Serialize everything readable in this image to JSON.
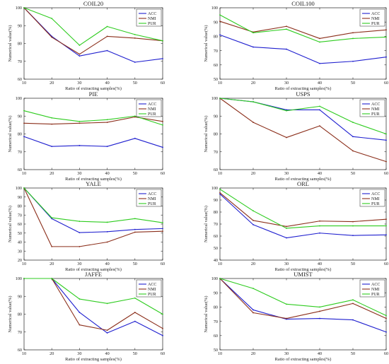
{
  "colors": {
    "ACC": "#1f1fcf",
    "NMI": "#8b2e1a",
    "PUR": "#2ecc1f"
  },
  "chart_data": [
    {
      "type": "line",
      "title": "COIL20",
      "xlabel": "Ratio of extracting samples(%)",
      "ylabel": "Numerical value(%)",
      "x": [
        10,
        20,
        30,
        40,
        50,
        60
      ],
      "xlim": [
        10,
        60
      ],
      "ylim": [
        60,
        100
      ],
      "yticks": [
        60,
        70,
        80,
        90,
        100
      ],
      "legend": "top-right",
      "grid": false,
      "series": [
        {
          "name": "ACC",
          "values": [
            100,
            84,
            73,
            76,
            69.5,
            71.5
          ]
        },
        {
          "name": "NMI",
          "values": [
            100,
            83.5,
            74,
            84,
            83,
            81.5
          ]
        },
        {
          "name": "PUR",
          "values": [
            100,
            94,
            79,
            89.5,
            85,
            81.5
          ]
        }
      ]
    },
    {
      "type": "line",
      "title": "COIL100",
      "xlabel": "Ratio of extracting samples(%)",
      "ylabel": "Numerical value(%)",
      "x": [
        10,
        20,
        30,
        40,
        50,
        60
      ],
      "xlim": [
        10,
        60
      ],
      "ylim": [
        50,
        100
      ],
      "yticks": [
        50,
        60,
        70,
        80,
        90,
        100
      ],
      "legend": "top-right",
      "grid": false,
      "series": [
        {
          "name": "ACC",
          "values": [
            81,
            72.5,
            71,
            61,
            62.5,
            65.5
          ]
        },
        {
          "name": "NMI",
          "values": [
            90.5,
            83,
            87,
            78.5,
            82.5,
            84.5
          ]
        },
        {
          "name": "PUR",
          "values": [
            95,
            82.5,
            85,
            76,
            78.5,
            79.5
          ]
        }
      ]
    },
    {
      "type": "line",
      "title": "PIE",
      "xlabel": "Ratio of extracting samples(%)",
      "ylabel": "Numerical value(%)",
      "x": [
        10,
        20,
        30,
        40,
        50,
        60
      ],
      "xlim": [
        10,
        60
      ],
      "ylim": [
        60,
        100
      ],
      "yticks": [
        60,
        70,
        80,
        90,
        100
      ],
      "legend": "top-right",
      "grid": false,
      "series": [
        {
          "name": "ACC",
          "values": [
            78.5,
            73,
            73.5,
            73,
            77.5,
            72.5
          ]
        },
        {
          "name": "NMI",
          "values": [
            86,
            85.5,
            86,
            86.5,
            89.5,
            87
          ]
        },
        {
          "name": "PUR",
          "values": [
            93,
            89,
            87,
            88,
            90,
            85
          ]
        }
      ]
    },
    {
      "type": "line",
      "title": "USPS",
      "xlabel": "Ratio of extracting samples(%)",
      "ylabel": "Numerical value(%)",
      "x": [
        10,
        20,
        30,
        40,
        50,
        60
      ],
      "xlim": [
        10,
        60
      ],
      "ylim": [
        60,
        100
      ],
      "yticks": [
        60,
        70,
        80,
        90,
        100
      ],
      "legend": "top-right",
      "grid": false,
      "series": [
        {
          "name": "ACC",
          "values": [
            100,
            98,
            93.5,
            93.5,
            78.5,
            76.5
          ]
        },
        {
          "name": "NMI",
          "values": [
            100,
            86.5,
            78,
            84.5,
            70.5,
            64.5
          ]
        },
        {
          "name": "PUR",
          "values": [
            100,
            98,
            93,
            95.5,
            86.5,
            80
          ]
        }
      ]
    },
    {
      "type": "line",
      "title": "YALE",
      "xlabel": "Ratio of extracting samples(%)",
      "ylabel": "Numerical value(%)",
      "x": [
        10,
        20,
        30,
        40,
        50,
        60
      ],
      "xlim": [
        10,
        60
      ],
      "ylim": [
        20,
        100
      ],
      "yticks": [
        20,
        30,
        40,
        50,
        60,
        70,
        80,
        90,
        100
      ],
      "legend": "top-right",
      "grid": false,
      "series": [
        {
          "name": "ACC",
          "values": [
            100,
            66,
            50.5,
            51.5,
            54,
            55
          ]
        },
        {
          "name": "NMI",
          "values": [
            100,
            35,
            35,
            40,
            51,
            52
          ]
        },
        {
          "name": "PUR",
          "values": [
            100,
            67,
            63,
            62,
            66,
            61.5
          ]
        }
      ]
    },
    {
      "type": "line",
      "title": "ORL",
      "xlabel": "Ratio of extracting samples(%)",
      "ylabel": "Numerical value(%)",
      "x": [
        10,
        20,
        30,
        40,
        50,
        60
      ],
      "xlim": [
        10,
        60
      ],
      "ylim": [
        40,
        100
      ],
      "yticks": [
        40,
        50,
        60,
        70,
        80,
        90,
        100
      ],
      "legend": "top-right",
      "grid": false,
      "series": [
        {
          "name": "ACC",
          "values": [
            95,
            69.5,
            58.5,
            62.5,
            60.5,
            61
          ]
        },
        {
          "name": "NMI",
          "values": [
            96,
            73,
            68,
            72.5,
            72,
            74
          ]
        },
        {
          "name": "PUR",
          "values": [
            99,
            81,
            66.5,
            68.5,
            68.5,
            68.5
          ]
        }
      ]
    },
    {
      "type": "line",
      "title": "JAFFE",
      "xlabel": "Ratio of extracting samples(%)",
      "ylabel": "Numerical value(%)",
      "x": [
        10,
        20,
        30,
        40,
        50,
        60
      ],
      "xlim": [
        10,
        60
      ],
      "ylim": [
        60,
        100
      ],
      "yticks": [
        60,
        70,
        80,
        90,
        100
      ],
      "legend": "top-right",
      "grid": false,
      "series": [
        {
          "name": "ACC",
          "values": [
            100,
            100,
            81,
            69.5,
            76,
            68
          ]
        },
        {
          "name": "NMI",
          "values": [
            100,
            100,
            74,
            71,
            81,
            72
          ]
        },
        {
          "name": "PUR",
          "values": [
            100,
            100,
            88.5,
            86,
            89,
            80
          ]
        }
      ]
    },
    {
      "type": "line",
      "title": "UMIST",
      "xlabel": "Ratio of extracting samples(%)",
      "ylabel": "Numerical value(%)",
      "x": [
        10,
        20,
        30,
        40,
        50,
        60
      ],
      "xlim": [
        10,
        60
      ],
      "ylim": [
        50,
        100
      ],
      "yticks": [
        50,
        60,
        70,
        80,
        90,
        100
      ],
      "legend": "top-right",
      "grid": false,
      "series": [
        {
          "name": "ACC",
          "values": [
            100,
            78,
            71.5,
            72,
            71,
            62.5
          ]
        },
        {
          "name": "NMI",
          "values": [
            100,
            76,
            72,
            77,
            82.5,
            72
          ]
        },
        {
          "name": "PUR",
          "values": [
            100,
            93,
            82,
            80,
            85,
            74
          ]
        }
      ]
    }
  ]
}
